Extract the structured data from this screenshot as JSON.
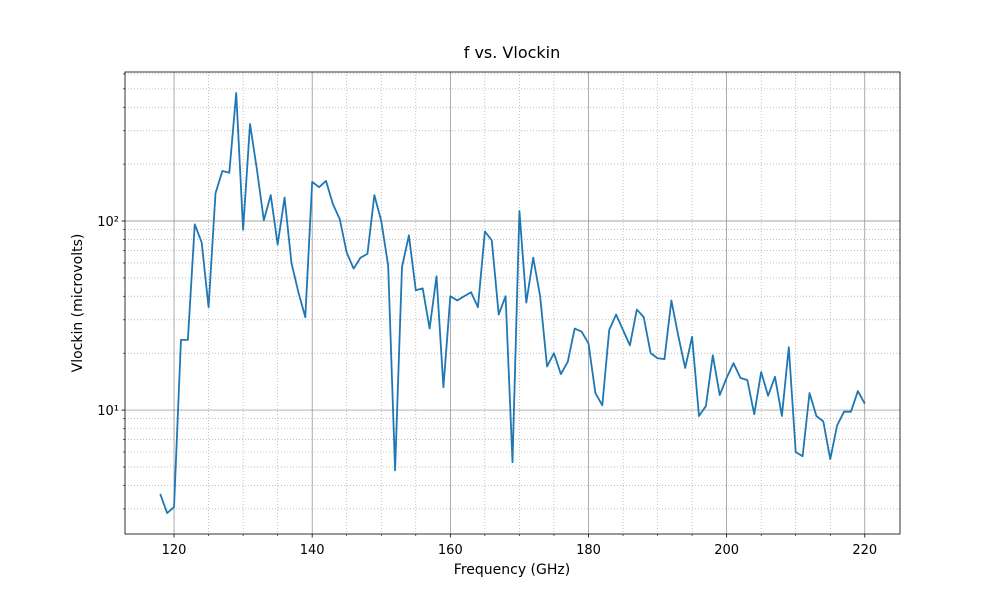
{
  "chart_data": {
    "type": "line",
    "title": "f vs. Vlockin",
    "xlabel": "Frequency (GHz)",
    "ylabel": "Vlockin (microvolts)",
    "x": [
      118,
      119,
      120,
      121,
      122,
      123,
      124,
      125,
      126,
      127,
      128,
      129,
      130,
      131,
      132,
      133,
      134,
      135,
      136,
      137,
      138,
      139,
      140,
      141,
      142,
      143,
      144,
      145,
      146,
      147,
      148,
      149,
      150,
      151,
      152,
      153,
      154,
      155,
      156,
      157,
      158,
      159,
      160,
      161,
      162,
      163,
      164,
      165,
      166,
      167,
      168,
      169,
      170,
      171,
      172,
      173,
      174,
      175,
      176,
      177,
      178,
      179,
      180,
      181,
      182,
      183,
      184,
      185,
      186,
      187,
      188,
      189,
      190,
      191,
      192,
      193,
      194,
      195,
      196,
      197,
      198,
      199,
      200,
      201,
      202,
      203,
      204,
      205,
      206,
      207,
      208,
      209,
      210,
      211,
      212,
      213,
      214,
      215,
      216,
      217,
      218,
      219,
      220
    ],
    "series": [
      {
        "name": "Vlockin",
        "color": "#1f77b4",
        "values": [
          3.6,
          2.85,
          3.07,
          23.5,
          23.5,
          96,
          77,
          35,
          140,
          184,
          180,
          475,
          90,
          326,
          187,
          101,
          137,
          75,
          133,
          60,
          42,
          31,
          161,
          151,
          163,
          123,
          102,
          68,
          56,
          64,
          67,
          137,
          100,
          58,
          4.8,
          57,
          84,
          43,
          44,
          27,
          51,
          13.2,
          40,
          38,
          40,
          42,
          35,
          88,
          79,
          32,
          40,
          5.3,
          113,
          37,
          64,
          40,
          17,
          20,
          15.5,
          18,
          27,
          26,
          22.5,
          12.3,
          10.6,
          26.5,
          32,
          26.5,
          22,
          34,
          31,
          20,
          18.8,
          18.6,
          38,
          24.7,
          16.7,
          24.4,
          9.3,
          10.5,
          19.5,
          12.0,
          14.8,
          17.7,
          14.8,
          14.4,
          9.5,
          15.9,
          11.9,
          15.0,
          9.3,
          21.5,
          6.0,
          5.7,
          12.3,
          9.3,
          8.7,
          5.5,
          8.3,
          9.8,
          9.8,
          12.6,
          10.8
        ]
      }
    ],
    "xlim": [
      112.9,
      225.1
    ],
    "xticks": [
      120,
      140,
      160,
      180,
      200,
      220
    ],
    "xminor_ticks": [
      125,
      130,
      135,
      145,
      150,
      155,
      165,
      170,
      175,
      185,
      190,
      195,
      205,
      210,
      215
    ],
    "ylim": [
      2.21,
      614
    ],
    "ylog": true,
    "yticks": [
      {
        "value": 10,
        "label": "10¹"
      },
      {
        "value": 100,
        "label": "10²"
      }
    ],
    "yminor_ticks": [
      3,
      4,
      5,
      6,
      7,
      8,
      9,
      20,
      30,
      40,
      50,
      60,
      70,
      80,
      90,
      200,
      300,
      400,
      500,
      600
    ],
    "grid": true
  }
}
